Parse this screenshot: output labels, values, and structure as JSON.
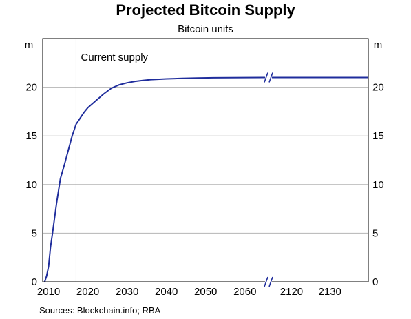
{
  "chart_data": {
    "type": "line",
    "title": "Projected Bitcoin Supply",
    "subtitle": "Bitcoin units",
    "y_unit_left": "m",
    "y_unit_right": "m",
    "ylim": [
      0,
      25
    ],
    "yticks": [
      "0",
      "5",
      "10",
      "15",
      "20"
    ],
    "ytick_values": [
      0,
      5,
      10,
      15,
      20
    ],
    "grid": true,
    "x_axis_break_between": [
      2066,
      2114
    ],
    "xticks": [
      "2010",
      "2020",
      "2030",
      "2040",
      "2050",
      "2060",
      "2120",
      "2130"
    ],
    "xtick_values": [
      2010,
      2020,
      2030,
      2040,
      2050,
      2060,
      2120,
      2130
    ],
    "annotation": {
      "label": "Current supply",
      "x": 2017
    },
    "series": [
      {
        "color": "#1f2d9c",
        "x": [
          2009,
          2009.5,
          2010,
          2010.5,
          2011,
          2012,
          2013,
          2014,
          2015,
          2016,
          2017,
          2018,
          2019,
          2020,
          2022,
          2024,
          2026,
          2028,
          2030,
          2032,
          2034,
          2036,
          2040,
          2044,
          2048,
          2052,
          2060,
          2066,
          2114,
          2140
        ],
        "values": [
          0,
          0.6,
          1.6,
          3.6,
          5.0,
          8.0,
          10.6,
          12.0,
          13.5,
          15.0,
          16.2,
          16.8,
          17.4,
          17.9,
          18.6,
          19.3,
          19.9,
          20.25,
          20.45,
          20.6,
          20.7,
          20.78,
          20.86,
          20.91,
          20.95,
          20.97,
          20.99,
          21.0,
          21.0,
          21.0
        ]
      }
    ]
  },
  "sources": "Sources:  Blockchain.info; RBA"
}
